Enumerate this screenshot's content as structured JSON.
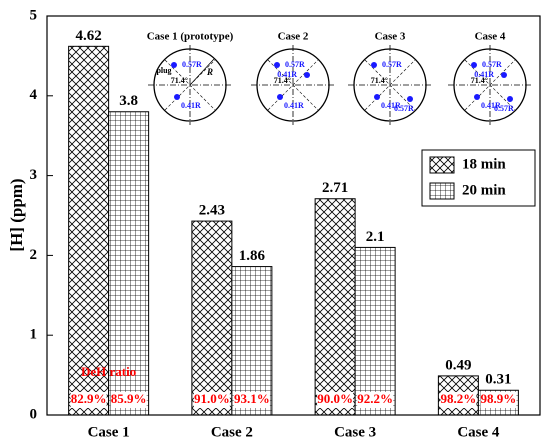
{
  "chart_data": {
    "type": "bar",
    "y_label": "[H] (ppm)",
    "categories": [
      "Case 1",
      "Case 2",
      "Case 3",
      "Case 4"
    ],
    "series": [
      {
        "name": "18 min",
        "color": "#000000",
        "hatch": "cross",
        "values": [
          4.62,
          2.43,
          2.71,
          0.49
        ],
        "ratio_values": [
          82.9,
          91.0,
          90.0,
          98.2
        ],
        "ratio_labels": [
          "82.9%",
          "91.0%",
          "90.0%",
          "98.2%"
        ]
      },
      {
        "name": "20 min",
        "color": "#000000",
        "hatch": "grid",
        "values": [
          3.8,
          1.86,
          2.1,
          0.31
        ],
        "ratio_values": [
          85.9,
          93.1,
          92.2,
          98.9
        ],
        "ratio_labels": [
          "85.9%",
          "93.1%",
          "92.2%",
          "98.9%"
        ]
      }
    ],
    "ratio_title": "DeH ratio",
    "ratio_color": "#ff0000",
    "ylim": [
      0,
      5
    ],
    "yticks": [
      0,
      1,
      2,
      3,
      4,
      5
    ],
    "legend": "upper right",
    "insets": [
      {
        "title": "Case 1 (prototype)",
        "angle": "71.4°",
        "plug": "plug",
        "radius": "R",
        "points": [
          "0.57R",
          "0.41R"
        ]
      },
      {
        "title": "Case 2",
        "angle": "71.4°",
        "points": [
          "0.57R",
          "0.41R",
          "0.41R"
        ]
      },
      {
        "title": "Case 3",
        "angle": "71.4°",
        "points": [
          "0.57R",
          "0.41R",
          "0.57R"
        ]
      },
      {
        "title": "Case 4",
        "angle": "71.4°",
        "points": [
          "0.57R",
          "0.41R",
          "0.41R",
          "0.57R"
        ]
      }
    ]
  }
}
